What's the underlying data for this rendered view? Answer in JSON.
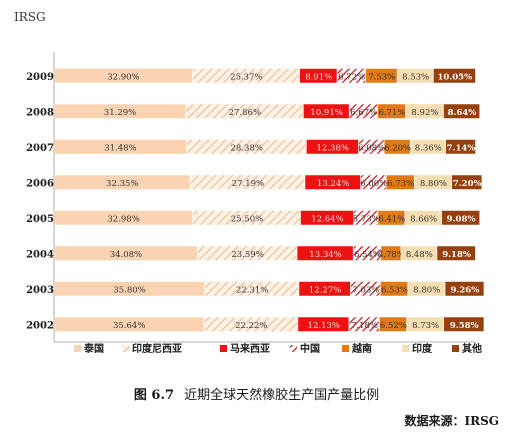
{
  "header_label": "IRSG",
  "caption": {
    "number": "图 6.7",
    "title": "近期全球天然橡胶生产国产量比例"
  },
  "source": "数据来源：IRSG",
  "colors": {
    "thailand": "#fad3b3",
    "indonesia": "#fad3b3",
    "malaysia": "#ee1111",
    "china": "#cc1111",
    "vietnam": "#e07a14",
    "india": "#f6deb3",
    "other": "#96400e"
  },
  "chart_data": {
    "type": "bar",
    "stacked": true,
    "orientation": "horizontal",
    "percent": true,
    "categories": [
      "2009",
      "2008",
      "2007",
      "2006",
      "2005",
      "2004",
      "2003",
      "2002"
    ],
    "series": [
      {
        "name": "泰国",
        "pattern": "solid",
        "colorKey": "thailand",
        "values": [
          32.9,
          31.29,
          31.48,
          32.35,
          32.98,
          34.08,
          35.8,
          35.64
        ],
        "labels": [
          "32.90%",
          "31.29%",
          "31.48%",
          "32.35%",
          "32.98%",
          "34.08%",
          "35.80%",
          "35.64%"
        ]
      },
      {
        "name": "印度尼西亚",
        "pattern": "hatch",
        "colorKey": "indonesia",
        "values": [
          25.37,
          27.86,
          28.38,
          27.19,
          25.5,
          23.59,
          22.31,
          22.22
        ],
        "labels": [
          "25.37%",
          "27.86%",
          "28.38%",
          "27.19%",
          "25.50%",
          "23.59%",
          "22.31%",
          "22.22%"
        ]
      },
      {
        "name": "马来西亚",
        "pattern": "solid",
        "colorKey": "malaysia",
        "values": [
          8.91,
          10.91,
          12.38,
          13.24,
          12.64,
          13.34,
          12.27,
          12.13
        ],
        "labels": [
          "8.91%",
          "10.91%",
          "12.38%",
          "13.24%",
          "12.64%",
          "13.34%",
          "12.27%",
          "12.13%"
        ]
      },
      {
        "name": "中国",
        "pattern": "hatch-red",
        "colorKey": "china",
        "values": [
          6.72,
          6.67,
          6.08,
          6.0,
          5.73,
          6.54,
          7.03,
          7.18
        ],
        "labels": [
          "6.72%",
          "6.67%",
          "6.08%",
          "6.00%",
          "5.73%",
          "6.54%",
          "7.03%",
          "7.18%"
        ]
      },
      {
        "name": "越南",
        "pattern": "solid",
        "colorKey": "vietnam",
        "values": [
          7.53,
          6.71,
          6.2,
          6.73,
          6.41,
          4.78,
          6.53,
          6.52
        ],
        "labels": [
          "7.53%",
          "6.71%",
          "6.20%",
          "6.73%",
          "6.41%",
          "4.78%",
          "6.53%",
          "6.52%"
        ]
      },
      {
        "name": "印度",
        "pattern": "solid",
        "colorKey": "india",
        "values": [
          8.53,
          8.92,
          8.36,
          8.8,
          8.66,
          8.48,
          8.8,
          8.73
        ],
        "labels": [
          "8.53%",
          "8.92%",
          "8.36%",
          "8.80%",
          "8.66%",
          "8.48%",
          "8.80%",
          "8.73%"
        ]
      },
      {
        "name": "其他",
        "pattern": "solid",
        "colorKey": "other",
        "values": [
          10.05,
          8.64,
          7.14,
          7.2,
          9.08,
          9.18,
          9.26,
          9.58
        ],
        "labels": [
          "10.05%",
          "8.64%",
          "7.14%",
          "7.20%",
          "9.08%",
          "9.18%",
          "9.26%",
          "9.58%"
        ]
      }
    ],
    "xlim": [
      0,
      100
    ],
    "legend_position": "bottom",
    "grid": false
  }
}
